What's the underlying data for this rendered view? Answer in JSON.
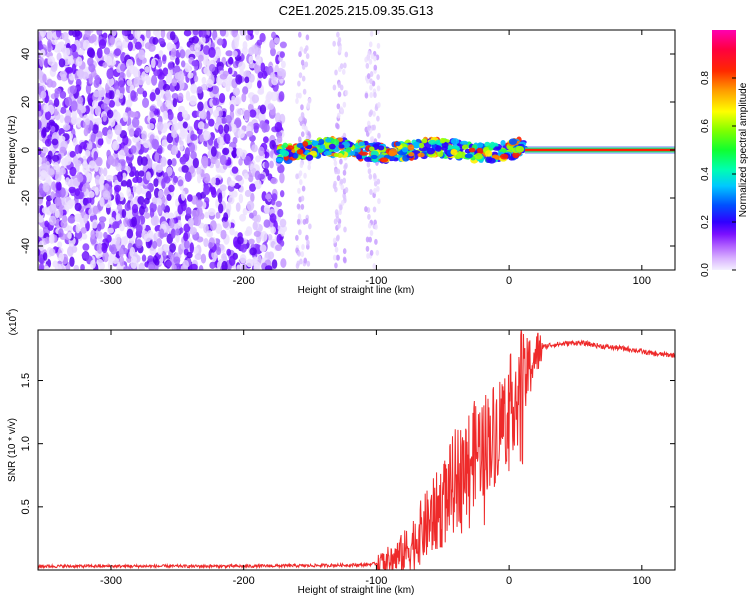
{
  "title": "C2E1.2025.215.09.35.G13",
  "colors": {
    "snr_line": "#ee2a2a",
    "colorbar": [
      "#f0f0ff",
      "#e6c8ff",
      "#c878ff",
      "#9b33ff",
      "#6a00ff",
      "#2200ff",
      "#005cff",
      "#00d0ff",
      "#00ff90",
      "#50ff00",
      "#ffff00",
      "#ffa000",
      "#ff3000",
      "#ff0050",
      "#ff00a0"
    ]
  },
  "chart_data": [
    {
      "type": "heatmap",
      "name": "spectrogram",
      "xlabel": "Height of straight line (km)",
      "ylabel": "Frequency (Hz)",
      "xlim": [
        -355,
        125
      ],
      "ylim": [
        -50,
        50
      ],
      "x_ticks": [
        -300,
        -200,
        -100,
        0,
        100
      ],
      "y_ticks": [
        -40,
        -20,
        0,
        20,
        40
      ],
      "colorbar": {
        "label": "Normalized spectral amplitude",
        "range": [
          0,
          1
        ],
        "ticks": [
          "0.0",
          "0.2",
          "0.4",
          "0.6",
          "0.8"
        ]
      },
      "features": {
        "noisy_region_x": [
          -355,
          -170
        ],
        "sparse_strips_x": [
          [
            -160,
            -150
          ],
          [
            -132,
            -122
          ],
          [
            -108,
            -98
          ]
        ],
        "signal_band_x": [
          -175,
          12
        ],
        "tone_x": [
          12,
          125
        ],
        "tone_frequency": 0
      }
    },
    {
      "type": "line",
      "name": "snr",
      "xlabel": "Height of straight line (km)",
      "ylabel": "SNR (10 * v/v)",
      "multiplier": "(x10",
      "multiplier_exp": "4",
      "xlim": [
        -355,
        125
      ],
      "ylim": [
        0,
        1.9
      ],
      "x_ticks": [
        -300,
        -200,
        -100,
        0,
        100
      ],
      "y_ticks": [
        "0.5",
        "1.0",
        "1.5"
      ],
      "y_tick_values": [
        0.5,
        1.0,
        1.5
      ],
      "series": [
        {
          "x": [
            -355,
            -300,
            -200,
            -150,
            -110,
            -100,
            -90,
            -80,
            -75,
            -70,
            -65,
            -60,
            -55,
            -50,
            -45,
            -40,
            -35,
            -30,
            -25,
            -20,
            -15,
            -10,
            -5,
            0,
            5,
            8,
            10,
            12,
            15,
            20,
            25,
            30,
            40,
            50,
            60,
            70,
            80,
            90,
            100,
            110,
            125
          ],
          "y": [
            0.03,
            0.03,
            0.03,
            0.035,
            0.04,
            0.05,
            0.08,
            0.12,
            0.18,
            0.25,
            0.32,
            0.38,
            0.45,
            0.52,
            0.62,
            0.72,
            0.8,
            0.88,
            0.95,
            1.0,
            1.05,
            1.1,
            1.2,
            1.28,
            1.4,
            1.3,
            1.15,
            1.5,
            1.6,
            1.7,
            1.76,
            1.78,
            1.79,
            1.8,
            1.79,
            1.77,
            1.76,
            1.75,
            1.73,
            1.71,
            1.7
          ]
        }
      ]
    }
  ]
}
